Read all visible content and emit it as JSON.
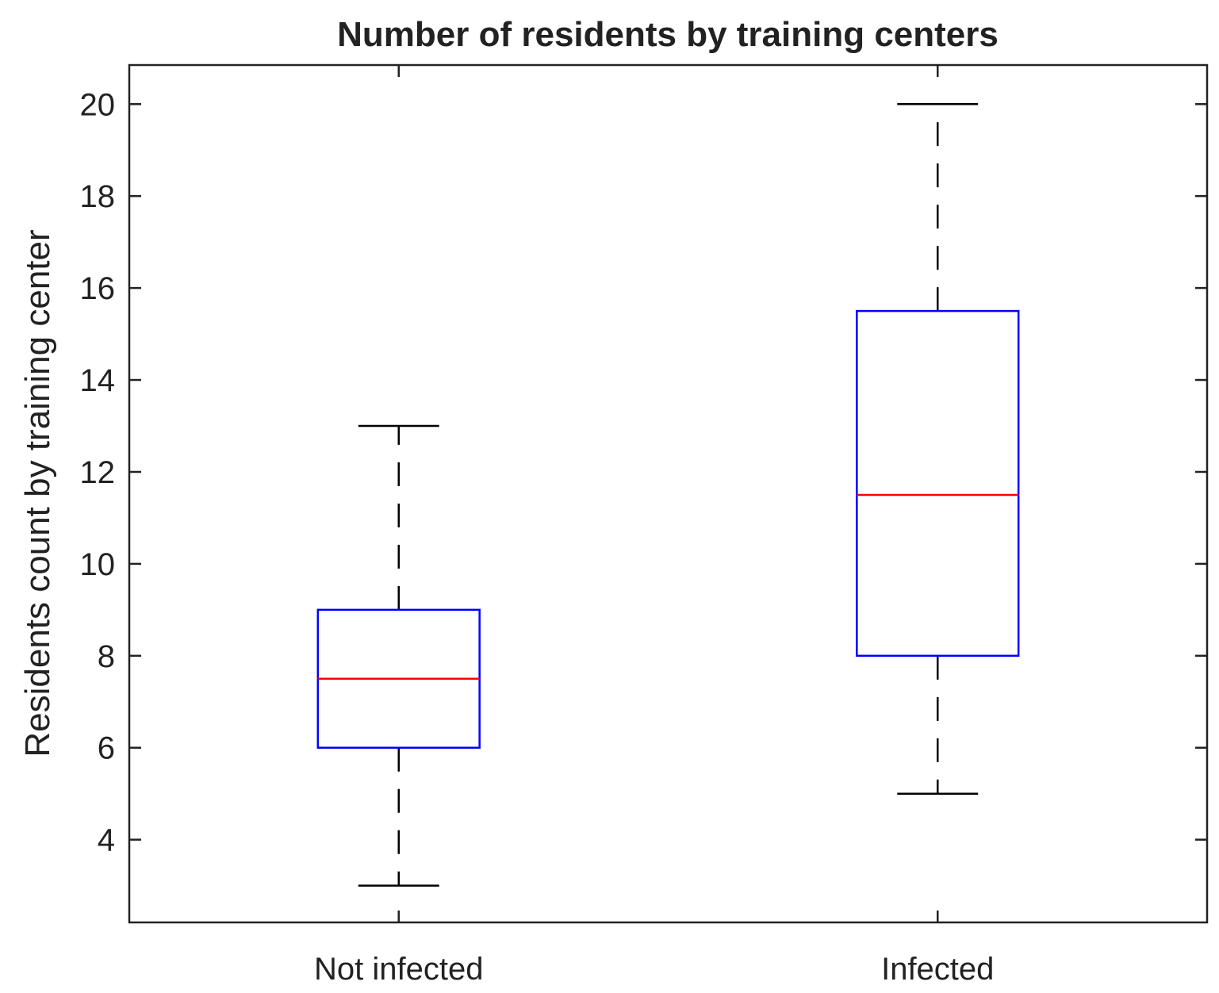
{
  "chart_data": {
    "type": "boxplot",
    "title": "Number of residents by training centers",
    "xlabel": "",
    "ylabel": "Residents count by training center",
    "ylim": [
      2.2,
      20.85
    ],
    "yticks": [
      4,
      6,
      8,
      10,
      12,
      14,
      16,
      18,
      20
    ],
    "categories": [
      "Not infected",
      "Infected"
    ],
    "boxes": [
      {
        "name": "Not infected",
        "whisker_low": 3,
        "q1": 6,
        "median": 7.5,
        "q3": 9,
        "whisker_high": 13
      },
      {
        "name": "Infected",
        "whisker_low": 5,
        "q1": 8,
        "median": 11.5,
        "q3": 15.5,
        "whisker_high": 20
      }
    ],
    "grid": false,
    "colors": {
      "box": "#0000ff",
      "median": "#ff0000",
      "whisker": "#000000",
      "axes": "#222222"
    }
  }
}
